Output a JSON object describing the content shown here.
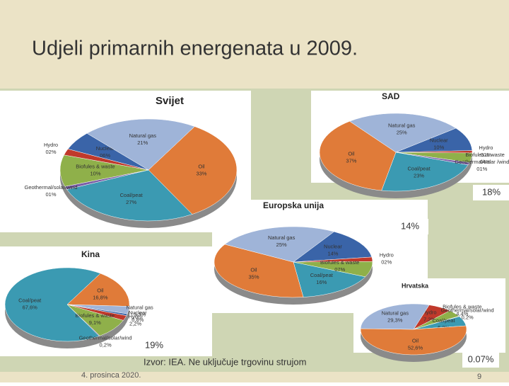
{
  "title": "Udjeli primarnih energenata u 2009.",
  "source": "Izvor: IEA. Ne uključuje trgovinu strujom",
  "date": "4. prosinca 2020.",
  "page_number": "9",
  "annotations": [
    "18%",
    "14%",
    "19%",
    "0.07%"
  ],
  "chart_data": [
    {
      "type": "pie",
      "title": "Svijet",
      "categories": [
        "Oil",
        "Coal/peat",
        "Geothermal/solar/wind",
        "Biofules & waste",
        "Hydro",
        "Nuclear",
        "Natural gas"
      ],
      "values": [
        33,
        27,
        1,
        10,
        2,
        6,
        21
      ],
      "value_labels": [
        "33%",
        "27%",
        "01%",
        "10%",
        "02%",
        "06%",
        "21%"
      ],
      "colors": [
        "#e07b39",
        "#3b9ab2",
        "#7b5ea7",
        "#8fb04a",
        "#c0392b",
        "#3a64a8",
        "#9fb4d8"
      ]
    },
    {
      "type": "pie",
      "title": "SAD",
      "categories": [
        "Coal/peat",
        "Oil",
        "Natural gas",
        "Nuclear",
        "Hydro",
        "Biofules & waste",
        "Geothermal/solar /wind"
      ],
      "values": [
        23,
        37,
        25,
        10,
        1,
        4,
        1
      ],
      "value_labels": [
        "23%",
        "37%",
        "25%",
        "10%",
        "01%",
        "04%",
        "01%"
      ],
      "colors": [
        "#3b9ab2",
        "#e07b39",
        "#9fb4d8",
        "#3a64a8",
        "#c0392b",
        "#8fb04a",
        "#7b5ea7"
      ]
    },
    {
      "type": "pie",
      "title": "Europska unija",
      "categories": [
        "Coal/peat",
        "Oil",
        "Natural gas",
        "Nuclear",
        "Hydro",
        "Biofules & waste"
      ],
      "values": [
        16,
        35,
        25,
        14,
        2,
        7
      ],
      "value_labels": [
        "16%",
        "35%",
        "25%",
        "14%",
        "02%",
        "07%"
      ],
      "colors": [
        "#3b9ab2",
        "#e07b39",
        "#9fb4d8",
        "#3a64a8",
        "#c0392b",
        "#8fb04a"
      ]
    },
    {
      "type": "pie",
      "title": "Kina",
      "categories": [
        "Coal/peat",
        "Oil",
        "Natural gas",
        "Nuclear",
        "Hydro",
        "Biofules & waste",
        "Geothermal/solar/wind"
      ],
      "values": [
        67.6,
        16.8,
        3.3,
        0.8,
        2.2,
        9.1,
        0.2
      ],
      "value_labels": [
        "67,6%",
        "16,8%",
        "3,3%",
        "0,8%",
        "2,2%",
        "9,1%",
        "0,2%"
      ],
      "colors": [
        "#3b9ab2",
        "#e07b39",
        "#9fb4d8",
        "#3a64a8",
        "#c0392b",
        "#8fb04a",
        "#7b5ea7"
      ]
    },
    {
      "type": "pie",
      "title": "Hrvatska",
      "categories": [
        "Hydro",
        "Biofules & waste",
        "Geothermal/solar/wind",
        "Coal/peat",
        "Oil",
        "Natural gas"
      ],
      "values": [
        7.2,
        4.4,
        0.2,
        6.2,
        52.6,
        29.3
      ],
      "value_labels": [
        "7,2%",
        "4,4%",
        "0,2%",
        "6,2%",
        "52,6%",
        "29,3%"
      ],
      "colors": [
        "#c0392b",
        "#8fb04a",
        "#7b5ea7",
        "#3b9ab2",
        "#e07b39",
        "#9fb4d8"
      ]
    }
  ]
}
